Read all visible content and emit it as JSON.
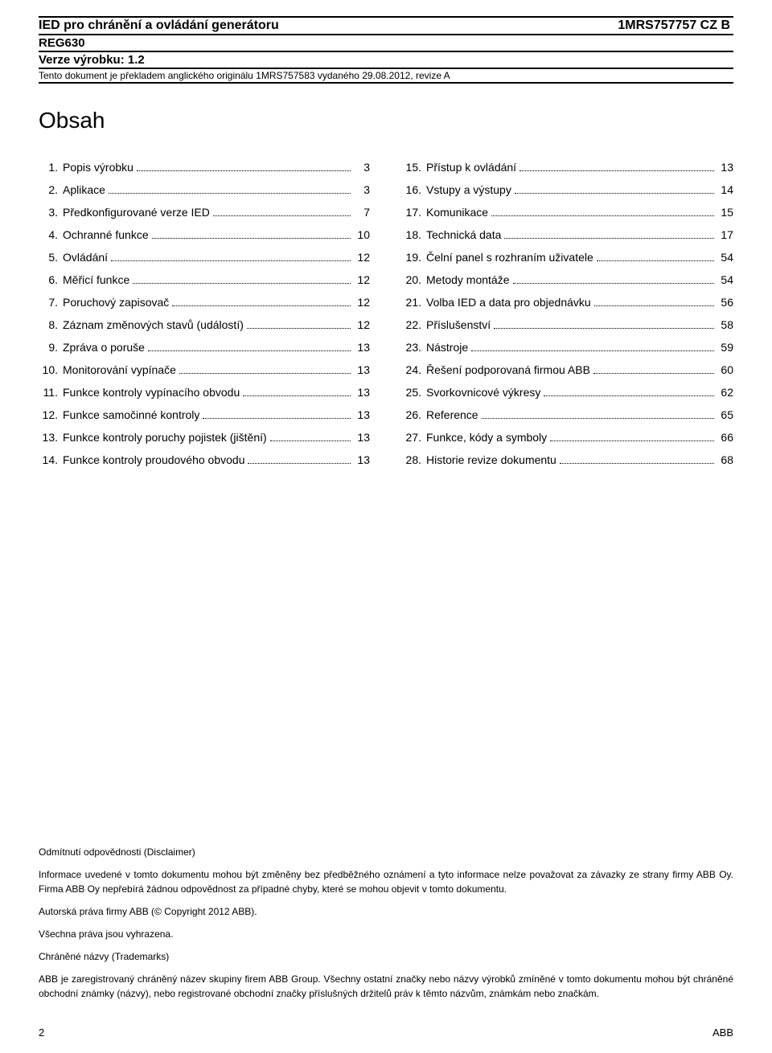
{
  "header": {
    "title_left": "IED pro chránění a ovládání generátoru",
    "title_right": "1MRS757757 CZ B",
    "product": "REG630",
    "version": "Verze výrobku: 1.2",
    "note": "Tento dokument je překladem anglického originálu 1MRS757583 vydaného 29.08.2012, revize A"
  },
  "toc_title": "Obsah",
  "toc_left": [
    {
      "n": "1.",
      "label": "Popis výrobku",
      "page": "3"
    },
    {
      "n": "2.",
      "label": "Aplikace",
      "page": "3"
    },
    {
      "n": "3.",
      "label": "Předkonfigurované verze IED",
      "page": "7"
    },
    {
      "n": "4.",
      "label": "Ochranné funkce",
      "page": "10"
    },
    {
      "n": "5.",
      "label": "Ovládání",
      "page": "12"
    },
    {
      "n": "6.",
      "label": "Měřicí funkce",
      "page": "12"
    },
    {
      "n": "7.",
      "label": "Poruchový zapisovač",
      "page": "12"
    },
    {
      "n": "8.",
      "label": "Záznam změnových stavů (událostí)",
      "page": "12"
    },
    {
      "n": "9.",
      "label": "Zpráva o poruše",
      "page": "13"
    },
    {
      "n": "10.",
      "label": "Monitorování vypínače",
      "page": "13"
    },
    {
      "n": "11.",
      "label": "Funkce kontroly vypínacího obvodu",
      "page": "13"
    },
    {
      "n": "12.",
      "label": "Funkce samočinné kontroly",
      "page": "13"
    },
    {
      "n": "13.",
      "label": "Funkce kontroly poruchy pojistek (jištění)",
      "page": "13"
    },
    {
      "n": "14.",
      "label": "Funkce kontroly proudového obvodu",
      "page": "13"
    }
  ],
  "toc_right": [
    {
      "n": "15.",
      "label": "Přístup k ovládání",
      "page": "13"
    },
    {
      "n": "16.",
      "label": "Vstupy a výstupy",
      "page": "14"
    },
    {
      "n": "17.",
      "label": "Komunikace",
      "page": "15"
    },
    {
      "n": "18.",
      "label": "Technická data",
      "page": "17"
    },
    {
      "n": "19.",
      "label": "Čelní panel s rozhraním uživatele",
      "page": "54"
    },
    {
      "n": "20.",
      "label": "Metody montáže",
      "page": "54"
    },
    {
      "n": "21.",
      "label": "Volba IED a data pro objednávku",
      "page": "56"
    },
    {
      "n": "22.",
      "label": "Příslušenství",
      "page": "58"
    },
    {
      "n": "23.",
      "label": "Nástroje",
      "page": "59"
    },
    {
      "n": "24.",
      "label": "Řešení podporovaná firmou ABB",
      "page": "60"
    },
    {
      "n": "25.",
      "label": "Svorkovnicové výkresy",
      "page": "62"
    },
    {
      "n": "26.",
      "label": "Reference",
      "page": "65"
    },
    {
      "n": "27.",
      "label": "Funkce, kódy a symboly",
      "page": "66"
    },
    {
      "n": "28.",
      "label": "Historie revize dokumentu",
      "page": "68"
    }
  ],
  "disclaimer": {
    "title": "Odmítnutí odpovědnosti (Disclaimer)",
    "p1": "Informace uvedené v tomto dokumentu mohou být změněny bez předběžného oznámení a tyto informace nelze považovat za závazky ze strany firmy ABB Oy. Firma ABB Oy nepřebírá žádnou odpovědnost za případné chyby, které se mohou objevit v tomto dokumentu.",
    "p2": "Autorská práva firmy ABB (© Copyright 2012 ABB).",
    "p3": "Všechna práva jsou vyhrazena.",
    "title2": "Chráněné názvy (Trademarks)",
    "p4": "ABB je zaregistrovaný chráněný název skupiny firem ABB Group. Všechny ostatní značky nebo názvy výrobků zmíněné v tomto dokumentu mohou být chráněné obchodní známky (názvy), nebo registrované obchodní značky příslušných držitelů práv k těmto názvům, známkám nebo značkám."
  },
  "footer": {
    "page": "2",
    "brand": "ABB"
  }
}
